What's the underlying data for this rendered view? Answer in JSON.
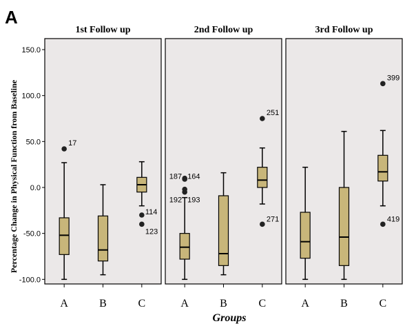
{
  "figure_label": "A",
  "colors": {
    "panel_bg": "#ebe8e8",
    "box_fill": "#c8b67a",
    "line": "#000000"
  },
  "chart_data": [
    {
      "type": "box",
      "title": "1st Follow up",
      "xlabel": "Groups",
      "ylabel": "Percentage Change in Physical Function from Baseline",
      "ylim": [
        -105,
        162
      ],
      "yticks": [
        "150.0",
        "100.0",
        "50.0",
        "0.0",
        "-50.0",
        "-100.0"
      ],
      "ytick_values": [
        150,
        100,
        50,
        0,
        -50,
        -100
      ],
      "categories": [
        "A",
        "B",
        "C"
      ],
      "boxes": [
        {
          "group": "A",
          "whisker_low": -100,
          "q1": -73,
          "median": -52,
          "q3": -33,
          "whisker_high": 27
        },
        {
          "group": "B",
          "whisker_low": -95,
          "q1": -80,
          "median": -68,
          "q3": -31,
          "whisker_high": 3
        },
        {
          "group": "C",
          "whisker_low": -20,
          "q1": -5,
          "median": 3,
          "q3": 11,
          "whisker_high": 28
        }
      ],
      "outliers": [
        {
          "group": "A",
          "value": 42,
          "label": "17"
        },
        {
          "group": "C",
          "value": -30,
          "label": "114"
        },
        {
          "group": "C",
          "value": -40,
          "label": "123"
        }
      ]
    },
    {
      "type": "box",
      "title": "2nd Follow up",
      "categories": [
        "A",
        "B",
        "C"
      ],
      "boxes": [
        {
          "group": "A",
          "whisker_low": -100,
          "q1": -78,
          "median": -65,
          "q3": -50,
          "whisker_high": -11
        },
        {
          "group": "B",
          "whisker_low": -95,
          "q1": -85,
          "median": -72,
          "q3": -9,
          "whisker_high": 16
        },
        {
          "group": "C",
          "whisker_low": -18,
          "q1": 0,
          "median": 8,
          "q3": 22,
          "whisker_high": 43
        }
      ],
      "outliers": [
        {
          "group": "A",
          "value": 10,
          "label": "187"
        },
        {
          "group": "A",
          "value": 9,
          "label": "164"
        },
        {
          "group": "A",
          "value": -2,
          "label": "192"
        },
        {
          "group": "A",
          "value": -5,
          "label": "193"
        },
        {
          "group": "C",
          "value": 75,
          "label": "251"
        },
        {
          "group": "C",
          "value": -40,
          "label": "271"
        }
      ]
    },
    {
      "type": "box",
      "title": "3rd Follow up",
      "categories": [
        "A",
        "B",
        "C"
      ],
      "boxes": [
        {
          "group": "A",
          "whisker_low": -100,
          "q1": -77,
          "median": -59,
          "q3": -27,
          "whisker_high": 22
        },
        {
          "group": "B",
          "whisker_low": -100,
          "q1": -85,
          "median": -54,
          "q3": 0,
          "whisker_high": 61
        },
        {
          "group": "C",
          "whisker_low": -20,
          "q1": 7,
          "median": 17,
          "q3": 35,
          "whisker_high": 62
        }
      ],
      "outliers": [
        {
          "group": "C",
          "value": 113,
          "label": "399"
        },
        {
          "group": "C",
          "value": -40,
          "label": "419"
        }
      ]
    }
  ]
}
